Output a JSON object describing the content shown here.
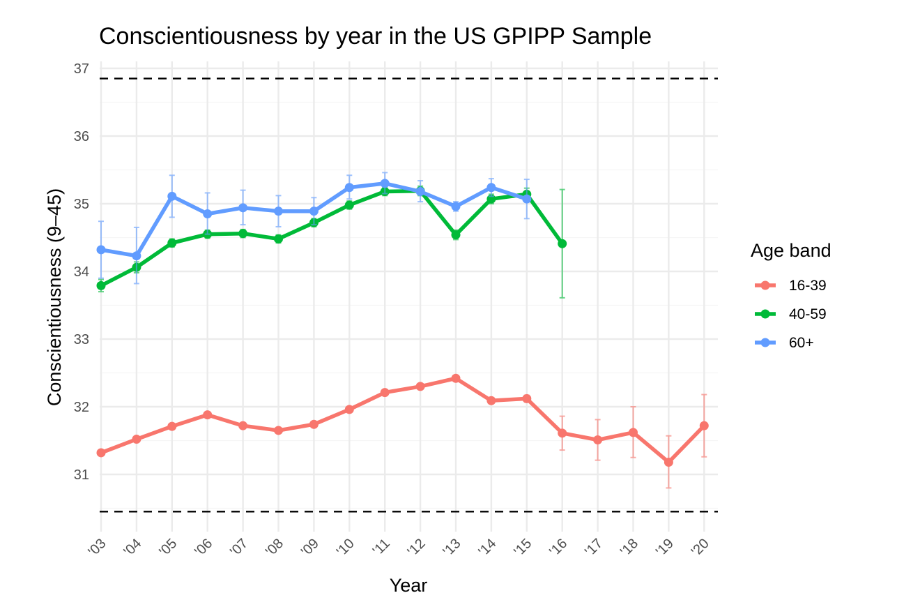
{
  "chart_data": {
    "type": "line",
    "title": "Conscientiousness by year in the US GPIPP Sample",
    "xlabel": "Year",
    "ylabel": "Conscientiousness (9–45)",
    "x": [
      "'03",
      "'04",
      "'05",
      "'06",
      "'07",
      "'08",
      "'09",
      "'10",
      "'11",
      "'12",
      "'13",
      "'14",
      "'15",
      "'16",
      "'17",
      "'18",
      "'19",
      "'20"
    ],
    "ylim": [
      30.2,
      37.1
    ],
    "yticks": [
      "31",
      "32",
      "33",
      "34",
      "35",
      "36",
      "37"
    ],
    "grid": true,
    "reference_lines": [
      36.85,
      30.45
    ],
    "legend": {
      "title": "Age band",
      "position": "right"
    },
    "series": [
      {
        "name": "16-39",
        "color": "#F8766D",
        "values": [
          31.32,
          31.52,
          31.71,
          31.88,
          31.72,
          31.65,
          31.74,
          31.96,
          32.21,
          32.3,
          32.42,
          32.09,
          32.12,
          31.61,
          31.51,
          31.62,
          31.18,
          31.72
        ],
        "error_low": [
          31.28,
          31.49,
          31.69,
          31.85,
          31.69,
          31.62,
          31.71,
          31.93,
          32.18,
          32.27,
          32.39,
          32.05,
          32.07,
          31.36,
          31.21,
          31.25,
          30.8,
          31.26
        ],
        "error_high": [
          31.36,
          31.55,
          31.73,
          31.91,
          31.75,
          31.68,
          31.77,
          31.99,
          32.24,
          32.33,
          32.45,
          32.13,
          32.17,
          31.86,
          31.81,
          32.0,
          31.57,
          32.18
        ]
      },
      {
        "name": "40-59",
        "color": "#00BA38",
        "values": [
          33.79,
          34.06,
          34.42,
          34.55,
          34.56,
          34.48,
          34.72,
          34.98,
          35.18,
          35.19,
          34.54,
          35.07,
          35.14,
          34.41,
          null,
          null,
          null,
          null
        ],
        "error_low": [
          33.7,
          33.98,
          34.36,
          34.49,
          34.5,
          34.42,
          34.66,
          34.92,
          35.12,
          35.12,
          34.47,
          35.0,
          35.05,
          33.61,
          null,
          null,
          null,
          null
        ],
        "error_high": [
          33.88,
          34.14,
          34.48,
          34.61,
          34.62,
          34.54,
          34.78,
          35.04,
          35.24,
          35.26,
          34.61,
          35.14,
          35.23,
          35.21,
          null,
          null,
          null,
          null
        ]
      },
      {
        "name": "60+",
        "color": "#619CFF",
        "values": [
          34.32,
          34.23,
          35.11,
          34.85,
          34.94,
          34.89,
          34.89,
          35.24,
          35.3,
          35.18,
          34.96,
          35.24,
          35.07,
          null,
          null,
          null,
          null,
          null
        ],
        "error_low": [
          33.9,
          33.82,
          34.8,
          34.55,
          34.69,
          34.66,
          34.69,
          35.07,
          35.15,
          35.03,
          34.89,
          35.11,
          34.78,
          null,
          null,
          null,
          null,
          null
        ],
        "error_high": [
          34.74,
          34.65,
          35.42,
          35.16,
          35.2,
          35.12,
          35.09,
          35.42,
          35.46,
          35.34,
          35.03,
          35.37,
          35.36,
          null,
          null,
          null,
          null,
          null
        ]
      }
    ]
  }
}
